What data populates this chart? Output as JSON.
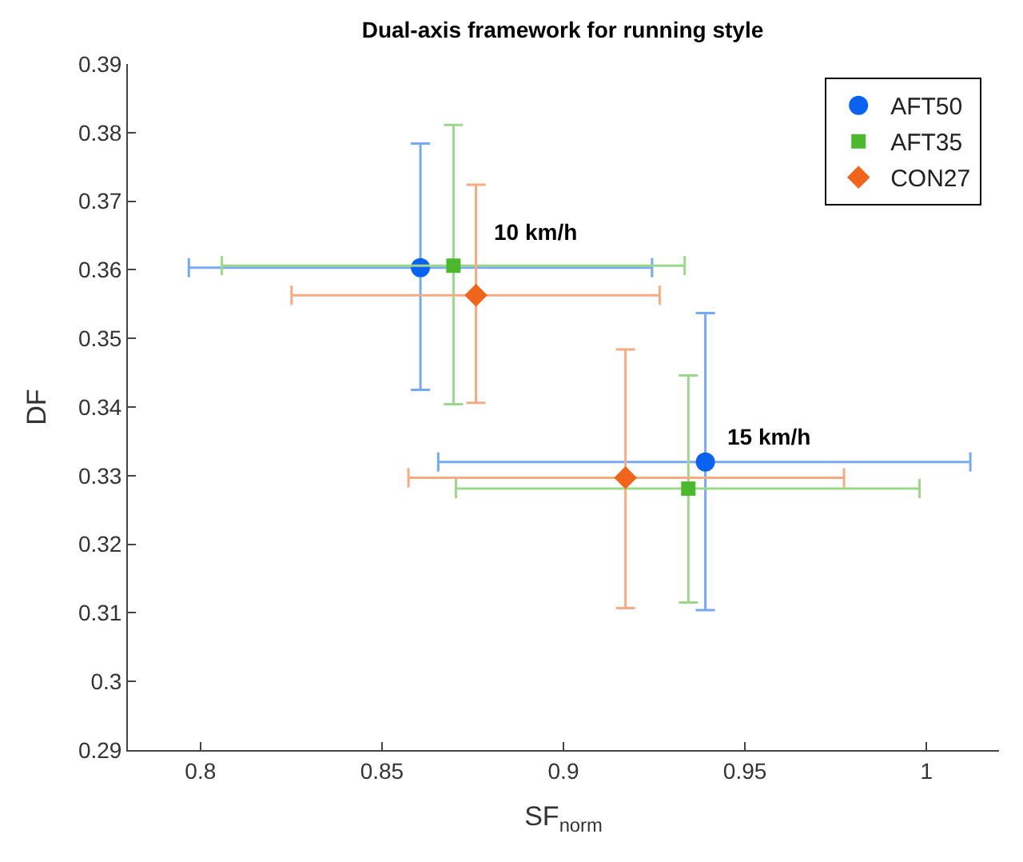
{
  "chart_data": {
    "type": "scatter",
    "title": "Dual-axis framework for running style",
    "xlabel": "SF$_{norm}$",
    "ylabel": "DF",
    "xlim": [
      0.78,
      1.02
    ],
    "xticks": [
      0.8,
      0.85,
      0.9,
      0.95,
      1
    ],
    "ylim": [
      0.29,
      0.39
    ],
    "yticks": [
      0.29,
      0.3,
      0.31,
      0.32,
      0.33,
      0.34,
      0.35,
      0.36,
      0.37,
      0.38,
      0.39
    ],
    "legend": "top right",
    "series": [
      {
        "name": "AFT50",
        "color": "#0a63f0",
        "marker": "circle",
        "x": [
          0.8606,
          0.9391
        ],
        "values": [
          0.3603,
          0.332
        ],
        "xerrors": [
          [
            0.7968,
            0.9244
          ],
          [
            0.8655,
            1.0121
          ]
        ],
        "errors": [
          [
            0.3425,
            0.3784
          ],
          [
            0.3104,
            0.3537
          ]
        ]
      },
      {
        "name": "AFT35",
        "color": "#4cb82e",
        "marker": "square",
        "x": [
          0.8697,
          0.9344
        ],
        "values": [
          0.3606,
          0.3281
        ],
        "xerrors": [
          [
            0.8059,
            0.9334
          ],
          [
            0.8704,
            0.9981
          ]
        ],
        "errors": [
          [
            0.3404,
            0.3811
          ],
          [
            0.3115,
            0.3446
          ]
        ]
      },
      {
        "name": "CON27",
        "color": "#f0651e",
        "marker": "diamond",
        "x": [
          0.8759,
          0.9171
        ],
        "values": [
          0.3563,
          0.3297
        ],
        "xerrors": [
          [
            0.8251,
            0.9265
          ],
          [
            0.8573,
            0.9773
          ]
        ],
        "errors": [
          [
            0.3406,
            0.3724
          ],
          [
            0.3107,
            0.3484
          ]
        ]
      }
    ],
    "annotations": [
      "10 km/h",
      "15 km/h"
    ]
  }
}
